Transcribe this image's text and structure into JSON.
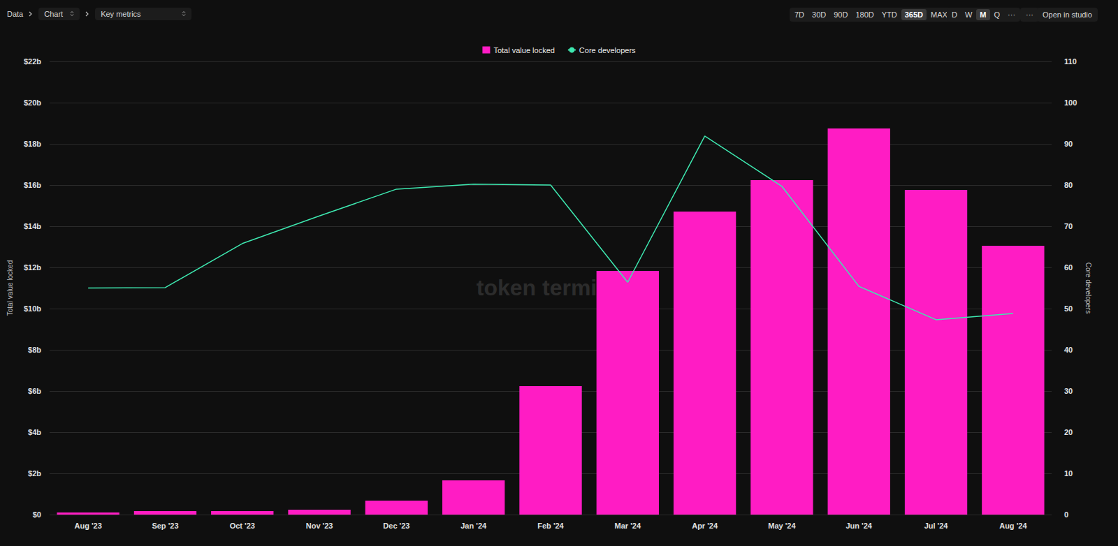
{
  "toolbar": {
    "breadcrumb": [
      "Data",
      "Chart",
      "Key metrics"
    ],
    "ranges": [
      "7D",
      "30D",
      "90D",
      "180D",
      "YTD",
      "365D",
      "MAX"
    ],
    "active_range": "365D",
    "granularity": [
      "D",
      "W",
      "M",
      "Q",
      "···"
    ],
    "active_granularity": "M",
    "buttons": [
      "···",
      "Open in studio"
    ]
  },
  "chart_data": {
    "type": "bar",
    "categories": [
      "Aug '23",
      "Sep '23",
      "Oct '23",
      "Nov '23",
      "Dec '23",
      "Jan '24",
      "Feb '24",
      "Mar '24",
      "Apr '24",
      "May '24",
      "Jun '24",
      "Jul '24",
      "Aug '24"
    ],
    "series": [
      {
        "name": "Total value locked",
        "type": "bar",
        "color": "#ff1cc4",
        "values": [
          0.1,
          0.17,
          0.17,
          0.24,
          0.68,
          1.66,
          6.24,
          11.83,
          14.71,
          16.24,
          18.75,
          15.76,
          13.05
        ]
      },
      {
        "name": "Core developers",
        "type": "line",
        "axis": "y2",
        "color": "#3ee8b0",
        "line_style": "solid",
        "values": [
          55,
          55.1,
          65.8,
          72.5,
          79,
          80.2,
          80,
          56.4,
          91.9,
          79.7,
          55.4,
          47.3,
          48.8
        ]
      }
    ],
    "ylabel": "Total value locked",
    "y2label": "Core developers",
    "ylim": [
      0,
      22
    ],
    "yticks": [
      {
        "value": 0,
        "label": "$0"
      },
      {
        "value": 2,
        "label": "$2b"
      },
      {
        "value": 4,
        "label": "$4b"
      },
      {
        "value": 6,
        "label": "$6b"
      },
      {
        "value": 8,
        "label": "$8b"
      },
      {
        "value": 10,
        "label": "$10b"
      },
      {
        "value": 12,
        "label": "$12b"
      },
      {
        "value": 14,
        "label": "$14b"
      },
      {
        "value": 16,
        "label": "$16b"
      },
      {
        "value": 18,
        "label": "$18b"
      },
      {
        "value": 20,
        "label": "$20b"
      },
      {
        "value": 22,
        "label": "$22b"
      }
    ],
    "y2lim": [
      0,
      110
    ],
    "y2ticks": [
      0,
      10,
      20,
      30,
      40,
      50,
      60,
      70,
      80,
      90,
      100,
      110
    ],
    "annotations": [
      "token terminal_"
    ],
    "legend": "top",
    "grid": true
  }
}
